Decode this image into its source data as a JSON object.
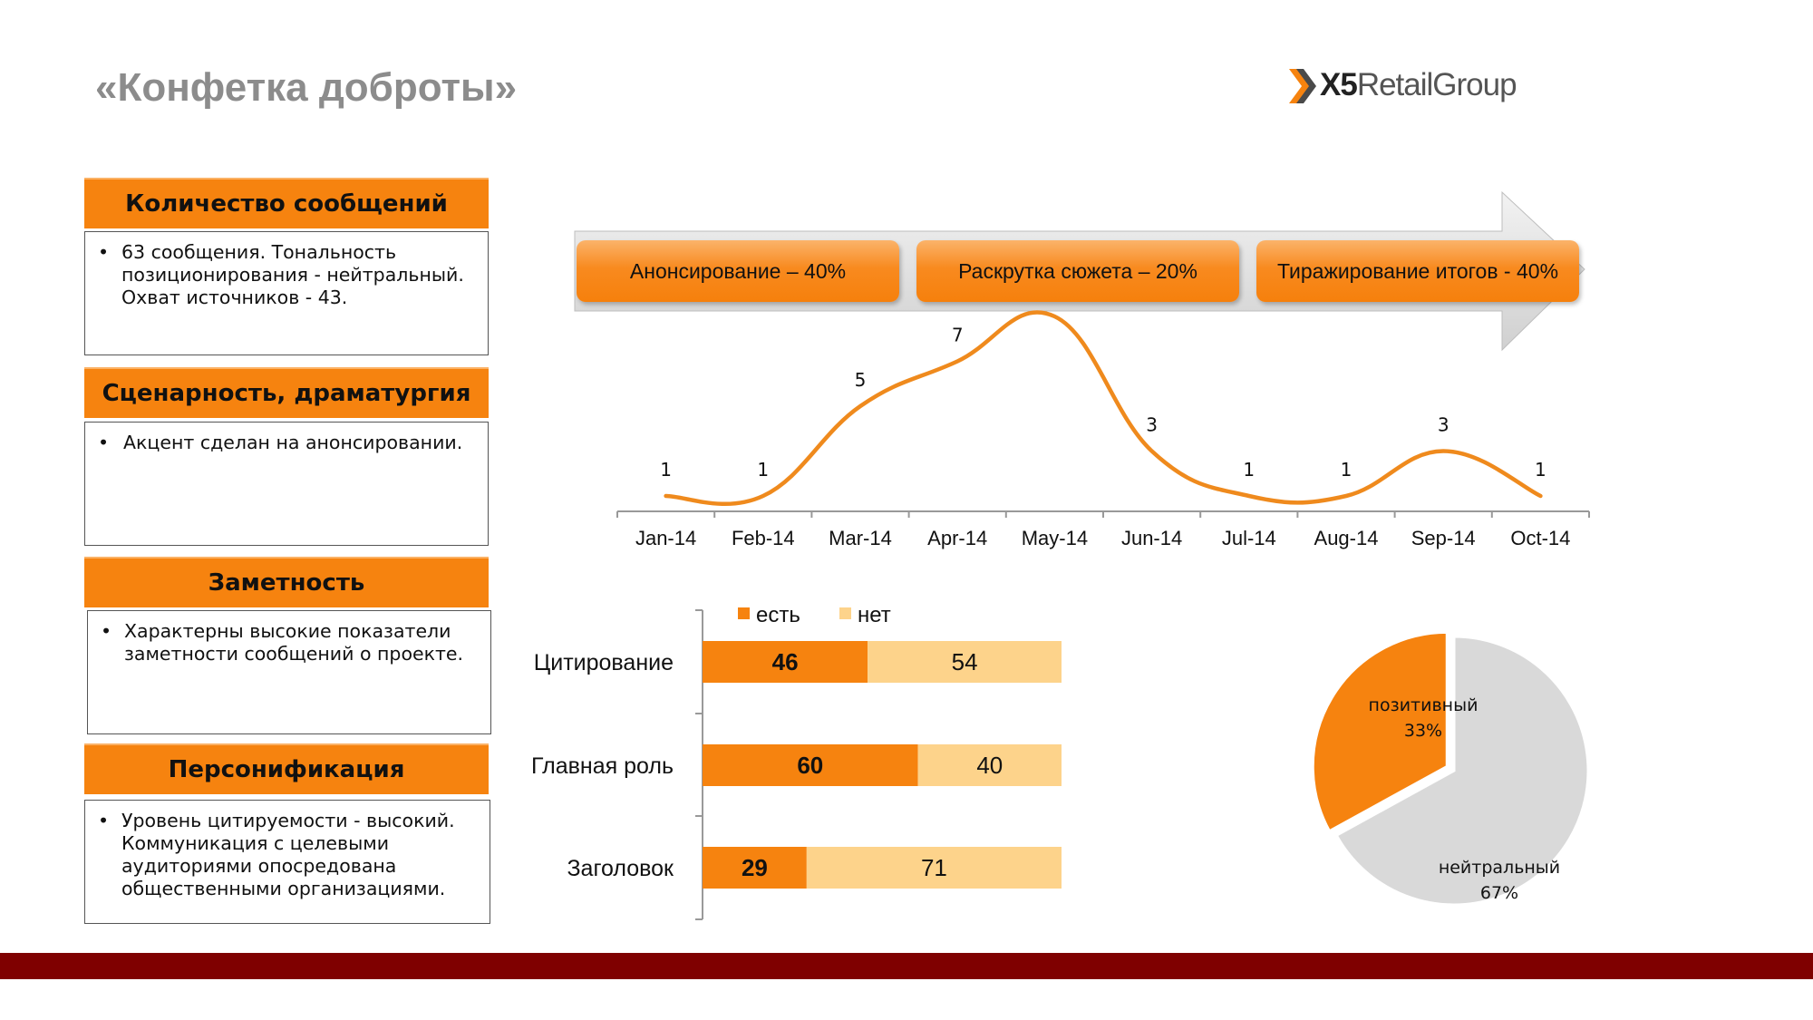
{
  "title": "«Конфетка доброты»",
  "logo": {
    "mark": "X5",
    "text": "RetailGroup",
    "icon": "x5-chevron-logo"
  },
  "sections": [
    {
      "heading": "Количество сообщений",
      "lines": [
        "63 сообщения.  Тональность",
        "позиционирования  - нейтральный.",
        "Охват источников  - 43."
      ]
    },
    {
      "heading": "Сценарность, драматургия",
      "lines": [
        "Акцент сделан на анонсировании."
      ]
    },
    {
      "heading": "Заметность",
      "lines": [
        "Характерны высокие показатели",
        "заметности сообщений о проекте."
      ]
    },
    {
      "heading": "Персонификация",
      "lines": [
        "Уровень цитируемости - высокий.",
        "Коммуникация с целевыми",
        "аудиториями опосредована",
        "общественными организациями."
      ]
    }
  ],
  "phases": [
    "Анонсирование – 40%",
    "Раскрутка сюжета – 20%",
    "Тиражирование итогов  - 40%"
  ],
  "colors": {
    "orange": "#f6830f",
    "light_orange": "#fdd38b",
    "gray": "#d9d9d9",
    "footer": "#7f0000",
    "title": "#8c8c8c"
  },
  "chart_data": [
    {
      "type": "line",
      "categories": [
        "Jan-14",
        "Feb-14",
        "Mar-14",
        "Apr-14",
        "May-14",
        "Jun-14",
        "Jul-14",
        "Aug-14",
        "Sep-14",
        "Oct-14"
      ],
      "values": [
        1,
        1,
        5,
        7,
        9,
        3,
        1,
        1,
        3,
        1
      ],
      "labels": [
        "1",
        "1",
        "5",
        "7",
        "",
        "3",
        "1",
        "1",
        "3",
        "1"
      ]
    },
    {
      "type": "bar",
      "stacked": true,
      "orientation": "horizontal",
      "categories": [
        "Цитирование",
        "Главная роль",
        "Заголовок"
      ],
      "series": [
        {
          "name": "есть",
          "values": [
            46,
            60,
            29
          ]
        },
        {
          "name": "нет",
          "values": [
            54,
            40,
            71
          ]
        }
      ],
      "legend": "top"
    },
    {
      "type": "pie",
      "slices": [
        {
          "label": "позитивный",
          "value": 33,
          "pct": "33%"
        },
        {
          "label": "нейтральный",
          "value": 67,
          "pct": "67%"
        }
      ]
    }
  ]
}
